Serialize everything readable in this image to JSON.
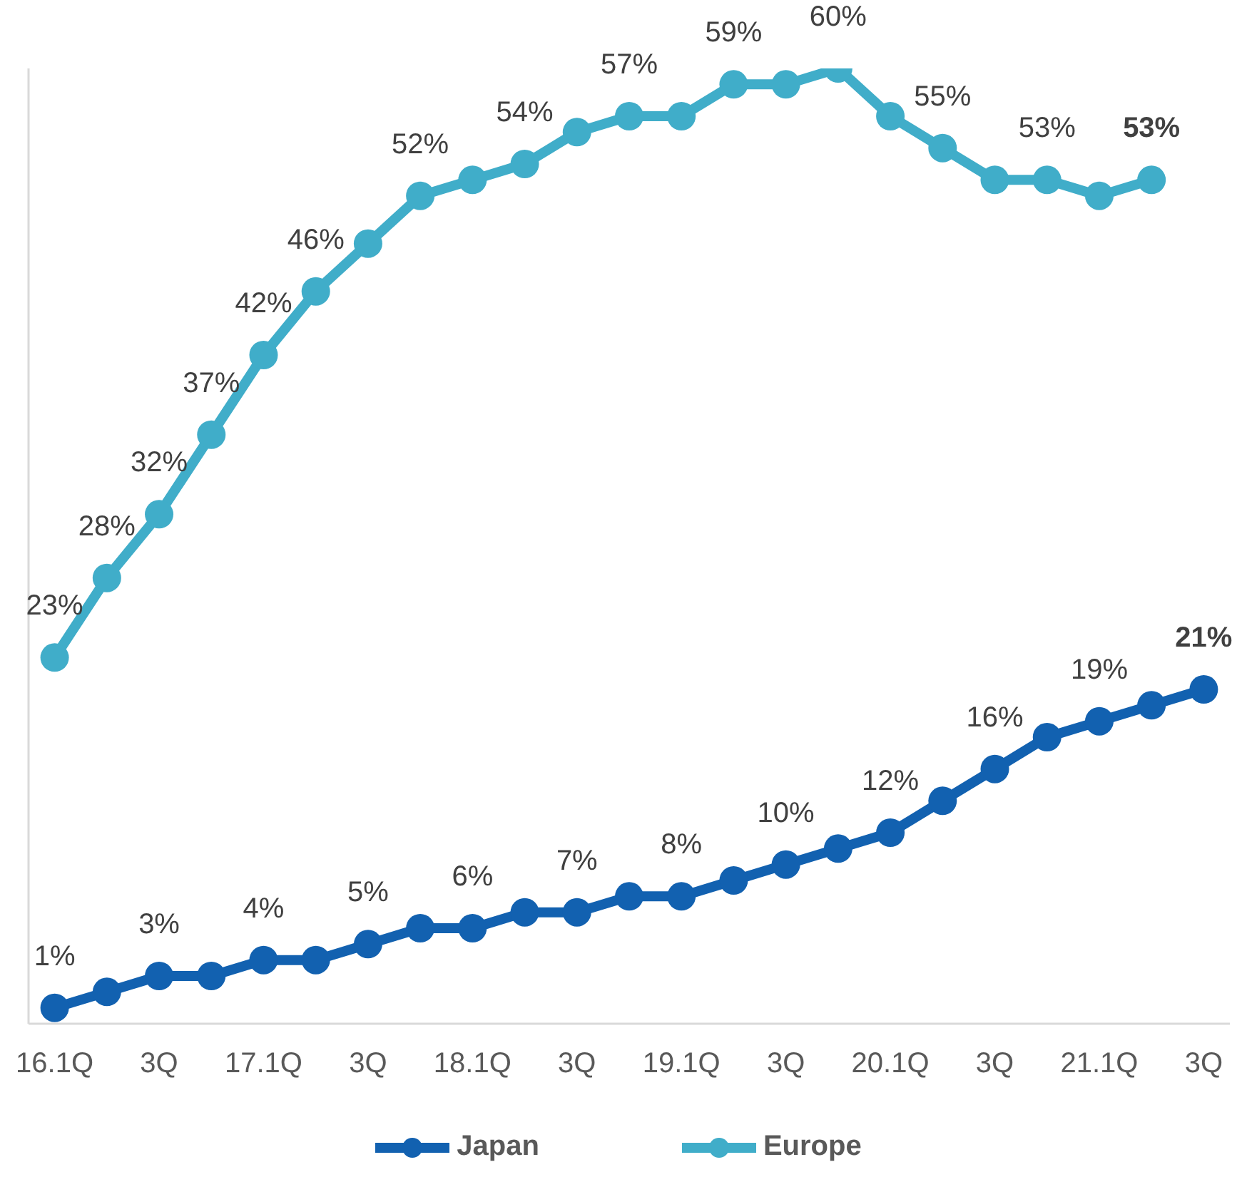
{
  "chart_data": {
    "type": "line",
    "categories": [
      "16.1Q",
      null,
      "3Q",
      null,
      "17.1Q",
      null,
      "3Q",
      null,
      "18.1Q",
      null,
      "3Q",
      null,
      "19.1Q",
      null,
      "3Q",
      null,
      "20.1Q",
      null,
      "3Q",
      null,
      "21.1Q",
      null,
      "3Q"
    ],
    "series": [
      {
        "name": "Japan",
        "color": "#1261b0",
        "values": [
          1,
          2,
          3,
          3,
          4,
          4,
          5,
          6,
          6,
          7,
          7,
          8,
          8,
          9,
          10,
          11,
          12,
          14,
          16,
          18,
          19,
          20,
          21
        ],
        "value_labels": [
          "1%",
          null,
          "3%",
          null,
          "4%",
          null,
          "5%",
          null,
          "6%",
          null,
          "7%",
          null,
          "8%",
          null,
          "10%",
          null,
          "12%",
          null,
          "16%",
          null,
          "19%",
          null,
          "21%"
        ]
      },
      {
        "name": "Europe",
        "color": "#40adc9",
        "values": [
          23,
          28,
          32,
          37,
          42,
          46,
          49,
          52,
          53,
          54,
          56,
          57,
          57,
          59,
          59,
          60,
          57,
          55,
          53,
          53,
          52,
          53,
          null
        ],
        "value_labels": [
          "23%",
          "28%",
          "32%",
          "37%",
          "42%",
          "46%",
          null,
          "52%",
          null,
          "54%",
          null,
          "57%",
          null,
          "59%",
          null,
          "60%",
          null,
          "55%",
          null,
          "53%",
          null,
          "53%",
          null
        ]
      }
    ],
    "ylim": [
      0,
      60
    ],
    "tick_labels": "x",
    "legend": "bottom",
    "marker": "circle",
    "line_style": "solid"
  }
}
